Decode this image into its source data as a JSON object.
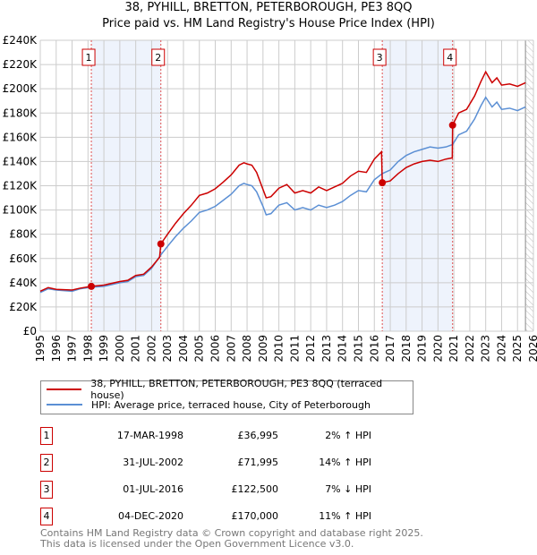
{
  "chart_data": {
    "type": "line",
    "title": "38, PYHILL, BRETTON, PETERBOROUGH, PE3 8QQ",
    "subtitle": "Price paid vs. HM Land Registry's House Price Index (HPI)",
    "xlim": [
      1995,
      2026
    ],
    "ylim": [
      0,
      240000
    ],
    "y_ticks": [
      "£0",
      "£20K",
      "£40K",
      "£60K",
      "£80K",
      "£100K",
      "£120K",
      "£140K",
      "£160K",
      "£180K",
      "£200K",
      "£220K",
      "£240K"
    ],
    "x_ticks": [
      "1995",
      "1996",
      "1997",
      "1998",
      "1999",
      "2000",
      "2001",
      "2002",
      "2003",
      "2004",
      "2005",
      "2006",
      "2007",
      "2008",
      "2009",
      "2010",
      "2011",
      "2012",
      "2013",
      "2014",
      "2015",
      "2016",
      "2017",
      "2018",
      "2019",
      "2020",
      "2021",
      "2022",
      "2023",
      "2024",
      "2025",
      "2026"
    ],
    "grid": true,
    "colors": {
      "property": "#cc0000",
      "hpi": "#5b8fd4",
      "shade": "#eef3fc"
    },
    "series": [
      {
        "name": "38, PYHILL, BRETTON, PETERBOROUGH, PE3 8QQ (terraced house)",
        "points": [
          [
            1995,
            33
          ],
          [
            1995.5,
            36
          ],
          [
            1996,
            34.5
          ],
          [
            1997,
            34
          ],
          [
            1997.5,
            35.5
          ],
          [
            1998.2,
            37
          ],
          [
            1999,
            38
          ],
          [
            2000,
            41
          ],
          [
            2000.5,
            42
          ],
          [
            2001,
            46
          ],
          [
            2001.5,
            47
          ],
          [
            2002,
            53
          ],
          [
            2002.5,
            61
          ],
          [
            2002.58,
            72
          ],
          [
            2003,
            80
          ],
          [
            2003.5,
            89
          ],
          [
            2004,
            97
          ],
          [
            2004.5,
            104
          ],
          [
            2005,
            112
          ],
          [
            2005.5,
            114
          ],
          [
            2006,
            117.5
          ],
          [
            2006.5,
            123
          ],
          [
            2007,
            129
          ],
          [
            2007.5,
            137
          ],
          [
            2007.8,
            139
          ],
          [
            2008,
            138
          ],
          [
            2008.3,
            137
          ],
          [
            2008.6,
            131
          ],
          [
            2009,
            117
          ],
          [
            2009.2,
            110
          ],
          [
            2009.5,
            111
          ],
          [
            2010,
            118
          ],
          [
            2010.5,
            121
          ],
          [
            2011,
            114
          ],
          [
            2011.5,
            116
          ],
          [
            2012,
            114
          ],
          [
            2012.5,
            119
          ],
          [
            2013,
            116
          ],
          [
            2013.5,
            119
          ],
          [
            2014,
            122
          ],
          [
            2014.5,
            128
          ],
          [
            2015,
            132
          ],
          [
            2015.5,
            131
          ],
          [
            2016,
            142
          ],
          [
            2016.45,
            148
          ],
          [
            2016.5,
            122.5
          ],
          [
            2017,
            124
          ],
          [
            2017.5,
            130
          ],
          [
            2018,
            135
          ],
          [
            2018.5,
            138
          ],
          [
            2019,
            140
          ],
          [
            2019.5,
            141
          ],
          [
            2020,
            140
          ],
          [
            2020.5,
            142
          ],
          [
            2020.9,
            143
          ],
          [
            2020.92,
            170
          ],
          [
            2021.3,
            180
          ],
          [
            2021.8,
            183
          ],
          [
            2022.3,
            194
          ],
          [
            2022.7,
            206
          ],
          [
            2023,
            214
          ],
          [
            2023.4,
            205
          ],
          [
            2023.7,
            209
          ],
          [
            2024,
            203
          ],
          [
            2024.5,
            204
          ],
          [
            2025,
            202
          ],
          [
            2025.5,
            205
          ]
        ]
      },
      {
        "name": "HPI: Average price, terraced house, City of Peterborough",
        "points": [
          [
            1995,
            32
          ],
          [
            1995.5,
            35
          ],
          [
            1996,
            34
          ],
          [
            1997,
            33
          ],
          [
            1997.5,
            35
          ],
          [
            1998.2,
            36.3
          ],
          [
            1999,
            37
          ],
          [
            2000,
            40
          ],
          [
            2000.5,
            41
          ],
          [
            2001,
            45
          ],
          [
            2001.5,
            46
          ],
          [
            2002,
            52
          ],
          [
            2002.58,
            63
          ],
          [
            2003,
            70
          ],
          [
            2003.5,
            78
          ],
          [
            2004,
            85
          ],
          [
            2004.5,
            91
          ],
          [
            2005,
            98
          ],
          [
            2005.5,
            100
          ],
          [
            2006,
            103
          ],
          [
            2006.5,
            108
          ],
          [
            2007,
            113
          ],
          [
            2007.5,
            120
          ],
          [
            2007.8,
            122
          ],
          [
            2008,
            121
          ],
          [
            2008.3,
            120
          ],
          [
            2008.6,
            115
          ],
          [
            2009,
            103
          ],
          [
            2009.2,
            96
          ],
          [
            2009.5,
            97
          ],
          [
            2010,
            104
          ],
          [
            2010.5,
            106
          ],
          [
            2011,
            100
          ],
          [
            2011.5,
            102
          ],
          [
            2012,
            100
          ],
          [
            2012.5,
            104
          ],
          [
            2013,
            102
          ],
          [
            2013.5,
            104
          ],
          [
            2014,
            107
          ],
          [
            2014.5,
            112
          ],
          [
            2015,
            116
          ],
          [
            2015.5,
            115
          ],
          [
            2016,
            125
          ],
          [
            2016.5,
            130
          ],
          [
            2017,
            133
          ],
          [
            2017.5,
            140
          ],
          [
            2018,
            145
          ],
          [
            2018.5,
            148
          ],
          [
            2019,
            150
          ],
          [
            2019.5,
            152
          ],
          [
            2020,
            151
          ],
          [
            2020.5,
            152
          ],
          [
            2020.92,
            154
          ],
          [
            2021.3,
            162
          ],
          [
            2021.8,
            165
          ],
          [
            2022.3,
            175
          ],
          [
            2022.7,
            186
          ],
          [
            2023,
            193
          ],
          [
            2023.4,
            185
          ],
          [
            2023.7,
            189
          ],
          [
            2024,
            183
          ],
          [
            2024.5,
            184
          ],
          [
            2025,
            182
          ],
          [
            2025.5,
            185
          ]
        ]
      }
    ],
    "value_unit": "thousands GBP",
    "sales": [
      {
        "n": "1",
        "x": 1998.21,
        "y": 36.995,
        "date": "17-MAR-1998",
        "price": "£36,995",
        "hpi": "2% ↑ HPI"
      },
      {
        "n": "2",
        "x": 2002.58,
        "y": 71.995,
        "date": "31-JUL-2002",
        "price": "£71,995",
        "hpi": "14% ↑ HPI"
      },
      {
        "n": "3",
        "x": 2016.5,
        "y": 122.5,
        "date": "01-JUL-2016",
        "price": "£122,500",
        "hpi": "7% ↓ HPI"
      },
      {
        "n": "4",
        "x": 2020.92,
        "y": 170,
        "date": "04-DEC-2020",
        "price": "£170,000",
        "hpi": "11% ↑ HPI"
      }
    ],
    "shaded_ranges": [
      [
        1998.21,
        2002.58
      ],
      [
        2016.5,
        2020.92
      ]
    ],
    "forecast_start": 2025.5
  },
  "footer": [
    "Contains HM Land Registry data © Crown copyright and database right 2025.",
    "This data is licensed under the Open Government Licence v3.0."
  ]
}
